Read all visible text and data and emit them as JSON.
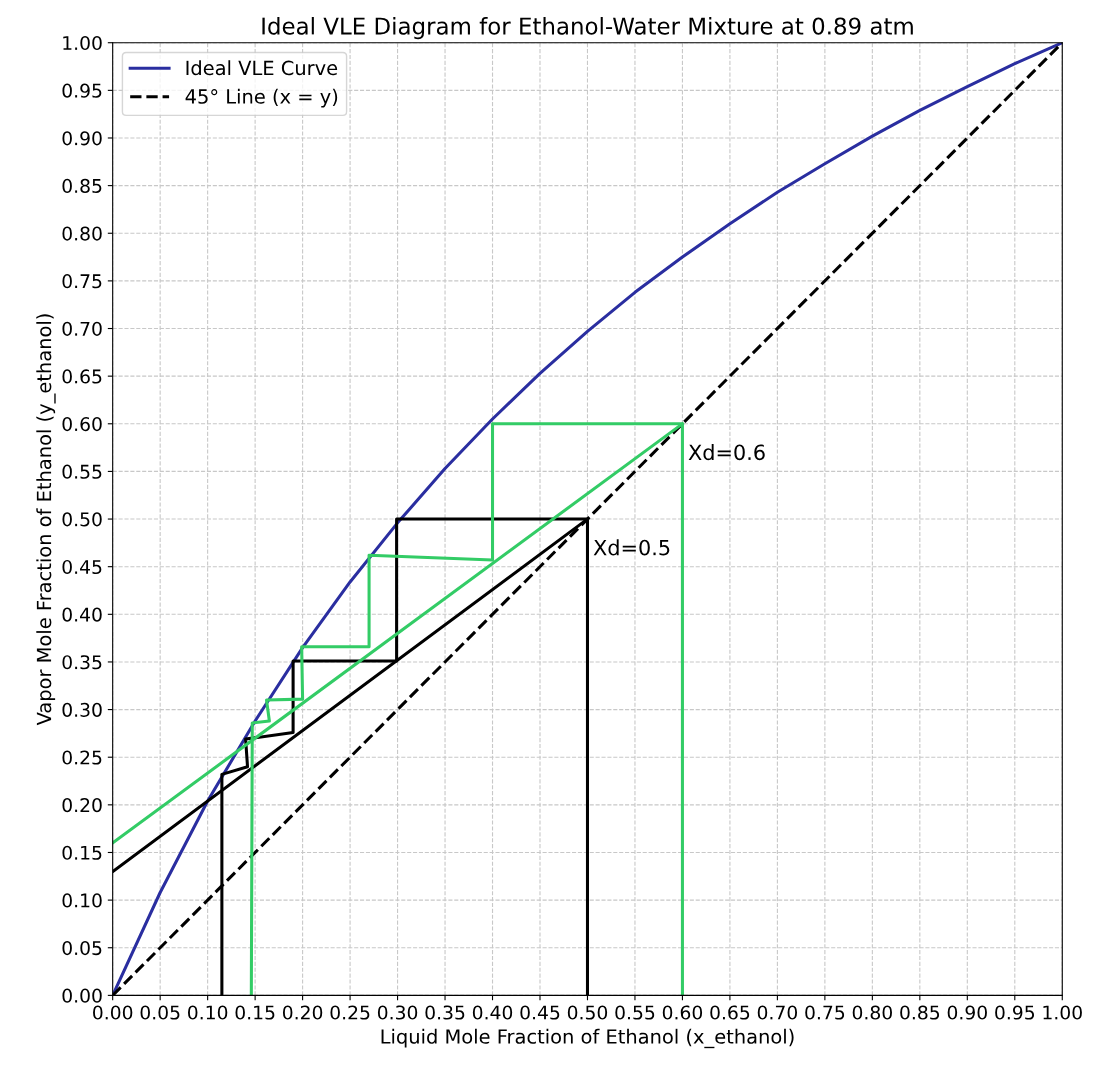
{
  "chart_data": {
    "type": "line",
    "title": "Ideal VLE Diagram for Ethanol-Water Mixture at 0.89 atm",
    "xlabel": "Liquid Mole Fraction of Ethanol (x_ethanol)",
    "ylabel": "Vapor Mole Fraction of Ethanol (y_ethanol)",
    "xlim": [
      0,
      1
    ],
    "ylim": [
      0,
      1
    ],
    "xticks": [
      {
        "value": 0,
        "label": "0.00"
      },
      {
        "value": 0.05,
        "label": "0.05"
      },
      {
        "value": 0.1,
        "label": "0.10"
      },
      {
        "value": 0.15,
        "label": "0.15"
      },
      {
        "value": 0.2,
        "label": "0.20"
      },
      {
        "value": 0.25,
        "label": "0.25"
      },
      {
        "value": 0.3,
        "label": "0.30"
      },
      {
        "value": 0.35,
        "label": "0.35"
      },
      {
        "value": 0.4,
        "label": "0.40"
      },
      {
        "value": 0.45,
        "label": "0.45"
      },
      {
        "value": 0.5,
        "label": "0.50"
      },
      {
        "value": 0.55,
        "label": "0.55"
      },
      {
        "value": 0.6,
        "label": "0.60"
      },
      {
        "value": 0.65,
        "label": "0.65"
      },
      {
        "value": 0.7,
        "label": "0.70"
      },
      {
        "value": 0.75,
        "label": "0.75"
      },
      {
        "value": 0.8,
        "label": "0.80"
      },
      {
        "value": 0.85,
        "label": "0.85"
      },
      {
        "value": 0.9,
        "label": "0.90"
      },
      {
        "value": 0.95,
        "label": "0.95"
      },
      {
        "value": 1,
        "label": "1.00"
      }
    ],
    "yticks": [
      {
        "value": 0,
        "label": "0.00"
      },
      {
        "value": 0.05,
        "label": "0.05"
      },
      {
        "value": 0.1,
        "label": "0.10"
      },
      {
        "value": 0.15,
        "label": "0.15"
      },
      {
        "value": 0.2,
        "label": "0.20"
      },
      {
        "value": 0.25,
        "label": "0.25"
      },
      {
        "value": 0.3,
        "label": "0.30"
      },
      {
        "value": 0.35,
        "label": "0.35"
      },
      {
        "value": 0.4,
        "label": "0.40"
      },
      {
        "value": 0.45,
        "label": "0.45"
      },
      {
        "value": 0.5,
        "label": "0.50"
      },
      {
        "value": 0.55,
        "label": "0.55"
      },
      {
        "value": 0.6,
        "label": "0.60"
      },
      {
        "value": 0.65,
        "label": "0.65"
      },
      {
        "value": 0.7,
        "label": "0.70"
      },
      {
        "value": 0.75,
        "label": "0.75"
      },
      {
        "value": 0.8,
        "label": "0.80"
      },
      {
        "value": 0.85,
        "label": "0.85"
      },
      {
        "value": 0.9,
        "label": "0.90"
      },
      {
        "value": 0.95,
        "label": "0.95"
      },
      {
        "value": 1,
        "label": "1.00"
      }
    ],
    "grid": true,
    "legend": "top left",
    "marker": "none",
    "series": [
      {
        "name": "Ideal VLE Curve",
        "color": "#2a2ea0",
        "line_style": "solid",
        "x": [
          0,
          0.05,
          0.1,
          0.15,
          0.2,
          0.25,
          0.3,
          0.35,
          0.4,
          0.45,
          0.5,
          0.55,
          0.6,
          0.65,
          0.7,
          0.75,
          0.8,
          0.85,
          0.9,
          0.95,
          1
        ],
        "values": [
          0,
          0.108,
          0.204,
          0.288,
          0.365,
          0.434,
          0.496,
          0.553,
          0.605,
          0.653,
          0.697,
          0.738,
          0.775,
          0.81,
          0.843,
          0.873,
          0.902,
          0.929,
          0.954,
          0.978,
          1
        ]
      },
      {
        "name": "45° Line (x = y)",
        "color": "#000000",
        "line_style": "dashed",
        "x": [
          0,
          1
        ],
        "values": [
          0,
          1
        ]
      },
      {
        "color": "#000000",
        "line_style": "solid",
        "x": [
          0,
          0.5
        ],
        "values": [
          0.13,
          0.5
        ]
      },
      {
        "color": "#000000",
        "line_style": "solid",
        "x": [
          0.5,
          0.5,
          0.299,
          0.299,
          0.19,
          0.19,
          0.14,
          0.142,
          0.115,
          0.115
        ],
        "values": [
          0,
          0.5,
          0.5,
          0.351,
          0.351,
          0.276,
          0.269,
          0.24,
          0.232,
          0
        ]
      },
      {
        "color": "#33cc66",
        "line_style": "solid",
        "x": [
          0,
          0.6
        ],
        "values": [
          0.16,
          0.6
        ]
      },
      {
        "color": "#33cc66",
        "line_style": "solid",
        "x": [
          0.6,
          0.6,
          0.4,
          0.4,
          0.27,
          0.27,
          0.199,
          0.2,
          0.162,
          0.165,
          0.147,
          0.146
        ],
        "values": [
          0,
          0.6,
          0.6,
          0.457,
          0.462,
          0.366,
          0.366,
          0.311,
          0.31,
          0.288,
          0.286,
          0
        ]
      }
    ],
    "annotations": [
      {
        "text": "Xd=0.6",
        "x": 0.6,
        "y": 0.6
      },
      {
        "text": "Xd=0.5",
        "x": 0.5,
        "y": 0.5
      }
    ]
  }
}
